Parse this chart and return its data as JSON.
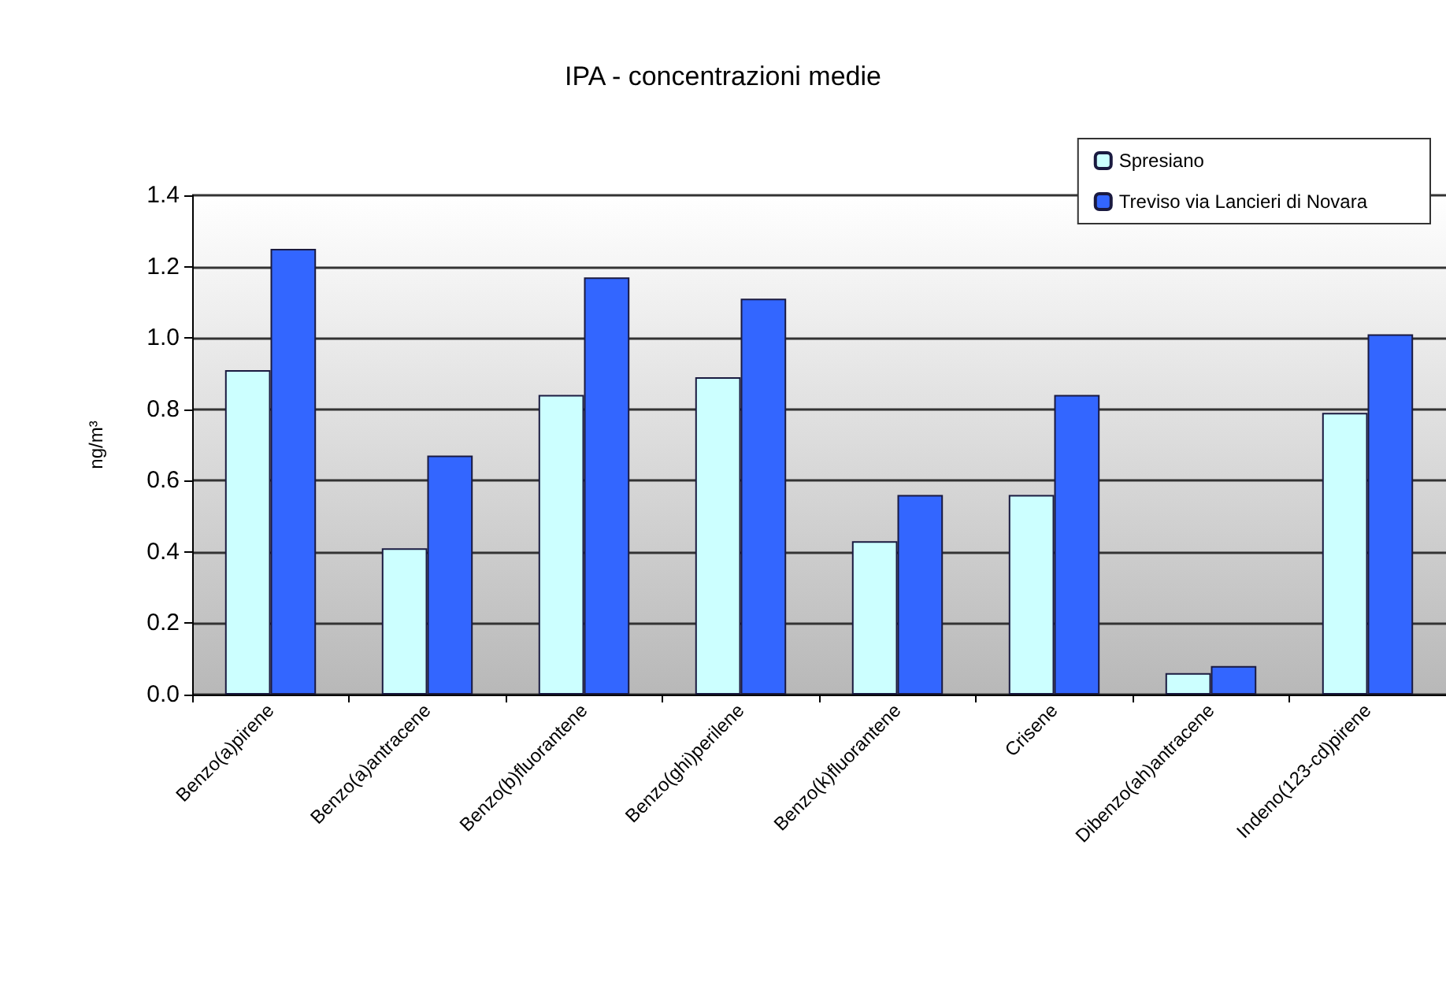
{
  "chart_data": {
    "type": "bar",
    "title": "IPA - concentrazioni medie",
    "ylabel": "ng/m³",
    "categories": [
      "Benzo(a)pirene",
      "Benzo(a)antracene",
      "Benzo(b)fluorantene",
      "Benzo(ghi)perilene",
      "Benzo(k)fluorantene",
      "Crisene",
      "Dibenzo(ah)antracene",
      "Indeno(123-cd)pirene"
    ],
    "series": [
      {
        "name": "Spresiano",
        "color": "#ccffff",
        "values": [
          0.91,
          0.41,
          0.84,
          0.89,
          0.43,
          0.56,
          0.06,
          0.79
        ]
      },
      {
        "name": "Treviso via Lancieri di Novara",
        "color": "#3366ff",
        "values": [
          1.25,
          0.67,
          1.17,
          1.11,
          0.56,
          0.84,
          0.08,
          1.01
        ]
      }
    ],
    "ylim": [
      0,
      1.4
    ],
    "yticks": [
      {
        "value": 0,
        "label": "0.0"
      },
      0.2,
      0.4,
      0.6,
      0.8,
      {
        "value": 1,
        "label": "1.0"
      },
      1.2,
      1.4
    ],
    "grid": "y",
    "legend": "top right"
  }
}
